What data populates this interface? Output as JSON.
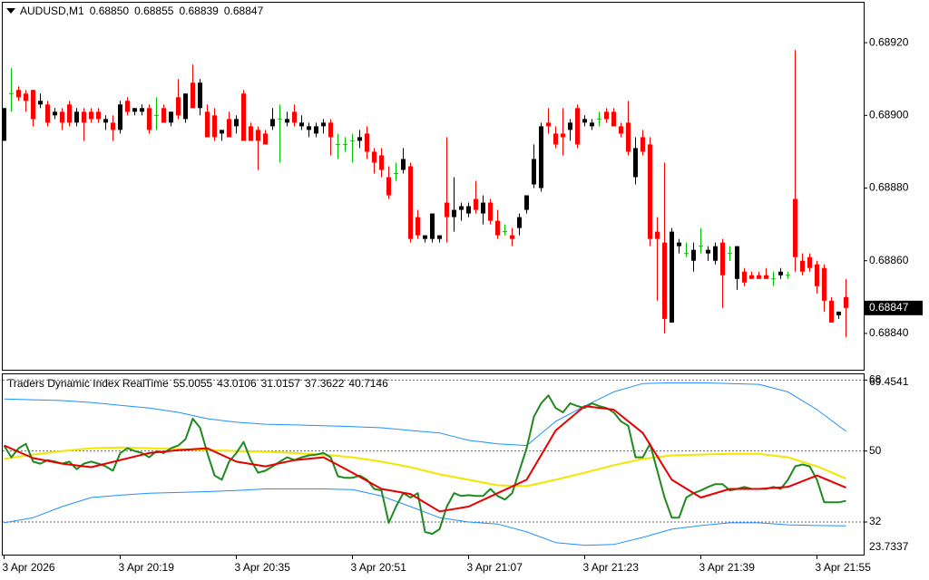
{
  "chart_data": [
    {
      "type": "candlestick",
      "symbol": "AUDUSD,M1",
      "header_values": [
        "0.68850",
        "0.68855",
        "0.68839",
        "0.68847"
      ],
      "last_price": {
        "value": 0.68847,
        "label": "0.68847"
      },
      "colors": {
        "up": "#000000",
        "down": "#ff0000",
        "doji": "#00c000"
      },
      "ylim": [
        0.6883,
        0.68931
      ],
      "yticks": [
        {
          "value": 0.6892,
          "label": "0.68920"
        },
        {
          "value": 0.689,
          "label": "0.68900"
        },
        {
          "value": 0.6888,
          "label": "0.68880"
        },
        {
          "value": 0.6886,
          "label": "0.68860"
        },
        {
          "value": 0.6884,
          "label": "0.68840"
        }
      ],
      "ohlc": [
        [
          0.68893,
          0.68902,
          0.68893,
          0.68902
        ],
        [
          0.68906,
          0.68913,
          0.68901,
          0.68906
        ],
        [
          0.68907,
          0.68908,
          0.68904,
          0.68905
        ],
        [
          0.68906,
          0.68907,
          0.68901,
          0.68904
        ],
        [
          0.68907,
          0.68907,
          0.68897,
          0.68899
        ],
        [
          0.68903,
          0.68906,
          0.68902,
          0.68904
        ],
        [
          0.68903,
          0.68904,
          0.68897,
          0.68898
        ],
        [
          0.689,
          0.68902,
          0.68899,
          0.68901
        ],
        [
          0.68901,
          0.68902,
          0.68896,
          0.68898
        ],
        [
          0.68903,
          0.68904,
          0.68897,
          0.68898
        ],
        [
          0.68898,
          0.68902,
          0.68897,
          0.68901
        ],
        [
          0.68901,
          0.68902,
          0.68893,
          0.68898
        ],
        [
          0.68901,
          0.68902,
          0.68898,
          0.68899
        ],
        [
          0.68901,
          0.68902,
          0.68898,
          0.68899
        ],
        [
          0.68898,
          0.689,
          0.68896,
          0.68899
        ],
        [
          0.68898,
          0.689,
          0.68893,
          0.68896
        ],
        [
          0.68896,
          0.68904,
          0.68895,
          0.68903
        ],
        [
          0.68904,
          0.68905,
          0.689,
          0.68901
        ],
        [
          0.68901,
          0.68902,
          0.689,
          0.68902
        ],
        [
          0.68901,
          0.68903,
          0.689,
          0.68902
        ],
        [
          0.68902,
          0.68903,
          0.68895,
          0.68896
        ],
        [
          0.689,
          0.68905,
          0.68896,
          0.689
        ],
        [
          0.68902,
          0.68903,
          0.68898,
          0.68898
        ],
        [
          0.68898,
          0.68901,
          0.68897,
          0.68901
        ],
        [
          0.68905,
          0.6891,
          0.68899,
          0.689
        ],
        [
          0.68899,
          0.68906,
          0.68898,
          0.68906
        ],
        [
          0.68909,
          0.68914,
          0.68902,
          0.68902
        ],
        [
          0.68902,
          0.6891,
          0.689,
          0.68909
        ],
        [
          0.68901,
          0.68903,
          0.68894,
          0.68894
        ],
        [
          0.689,
          0.68902,
          0.68893,
          0.68894
        ],
        [
          0.68895,
          0.68896,
          0.68893,
          0.68896
        ],
        [
          0.68899,
          0.68901,
          0.68894,
          0.68894
        ],
        [
          0.68897,
          0.689,
          0.68895,
          0.68899
        ],
        [
          0.68906,
          0.68907,
          0.68893,
          0.68893
        ],
        [
          0.68897,
          0.68898,
          0.68893,
          0.68893
        ],
        [
          0.68896,
          0.68897,
          0.68885,
          0.68893
        ],
        [
          0.68895,
          0.68896,
          0.68892,
          0.68892
        ],
        [
          0.68897,
          0.68902,
          0.68896,
          0.68899
        ],
        [
          0.68899,
          0.68903,
          0.68887,
          0.68899
        ],
        [
          0.68898,
          0.68901,
          0.68897,
          0.68899
        ],
        [
          0.68901,
          0.68903,
          0.68897,
          0.68898
        ],
        [
          0.68897,
          0.689,
          0.68896,
          0.68898
        ],
        [
          0.68896,
          0.68898,
          0.68894,
          0.68897
        ],
        [
          0.68895,
          0.68898,
          0.68894,
          0.68897
        ],
        [
          0.68897,
          0.68899,
          0.68895,
          0.68898
        ],
        [
          0.68898,
          0.68899,
          0.68889,
          0.68894
        ],
        [
          0.68892,
          0.68895,
          0.68888,
          0.68892
        ],
        [
          0.68892,
          0.68894,
          0.6889,
          0.68892
        ],
        [
          0.68893,
          0.68895,
          0.68887,
          0.68893
        ],
        [
          0.68893,
          0.68896,
          0.68891,
          0.68894
        ],
        [
          0.68895,
          0.68897,
          0.68888,
          0.6889
        ],
        [
          0.6889,
          0.68891,
          0.68884,
          0.68887
        ],
        [
          0.68889,
          0.68891,
          0.68883,
          0.68885
        ],
        [
          0.68883,
          0.68886,
          0.68877,
          0.68878
        ],
        [
          0.68884,
          0.68887,
          0.68882,
          0.68884
        ],
        [
          0.68885,
          0.68891,
          0.68884,
          0.68888
        ],
        [
          0.68886,
          0.68887,
          0.68865,
          0.68866
        ],
        [
          0.68872,
          0.68874,
          0.68866,
          0.68867
        ],
        [
          0.68866,
          0.68867,
          0.68865,
          0.68867
        ],
        [
          0.68866,
          0.68873,
          0.68865,
          0.68873
        ],
        [
          0.68866,
          0.68867,
          0.68865,
          0.68867
        ],
        [
          0.68876,
          0.68894,
          0.68865,
          0.68872
        ],
        [
          0.68872,
          0.68883,
          0.68868,
          0.68874
        ],
        [
          0.68874,
          0.68876,
          0.68871,
          0.68875
        ],
        [
          0.68873,
          0.68876,
          0.68872,
          0.68875
        ],
        [
          0.68877,
          0.68882,
          0.68873,
          0.68874
        ],
        [
          0.68873,
          0.68878,
          0.6887,
          0.68876
        ],
        [
          0.68876,
          0.68877,
          0.6887,
          0.68871
        ],
        [
          0.68871,
          0.68874,
          0.68866,
          0.68867
        ],
        [
          0.68868,
          0.6887,
          0.68867,
          0.68868
        ],
        [
          0.68867,
          0.68869,
          0.68864,
          0.68866
        ],
        [
          0.68869,
          0.68873,
          0.68867,
          0.68872
        ],
        [
          0.68874,
          0.68878,
          0.68873,
          0.68878
        ],
        [
          0.68881,
          0.68892,
          0.6888,
          0.68888
        ],
        [
          0.6888,
          0.68898,
          0.68879,
          0.68897
        ],
        [
          0.68898,
          0.68902,
          0.68895,
          0.68897
        ],
        [
          0.68895,
          0.68897,
          0.68891,
          0.68892
        ],
        [
          0.68895,
          0.68902,
          0.68889,
          0.68894
        ],
        [
          0.68896,
          0.68899,
          0.68893,
          0.68898
        ],
        [
          0.68902,
          0.68903,
          0.68891,
          0.68892
        ],
        [
          0.68898,
          0.689,
          0.68897,
          0.68899
        ],
        [
          0.68897,
          0.68899,
          0.68896,
          0.68898
        ],
        [
          0.68899,
          0.68901,
          0.68897,
          0.68899
        ],
        [
          0.68901,
          0.68902,
          0.68898,
          0.68899
        ],
        [
          0.68901,
          0.68902,
          0.68897,
          0.68897
        ],
        [
          0.68897,
          0.68898,
          0.68894,
          0.68895
        ],
        [
          0.68898,
          0.68904,
          0.68889,
          0.6889
        ],
        [
          0.68883,
          0.68894,
          0.68881,
          0.68891
        ],
        [
          0.68894,
          0.68896,
          0.68889,
          0.6889
        ],
        [
          0.68892,
          0.68894,
          0.68864,
          0.68866
        ],
        [
          0.68868,
          0.68872,
          0.68849,
          0.68866
        ],
        [
          0.68865,
          0.68887,
          0.6884,
          0.68844
        ],
        [
          0.68843,
          0.68869,
          0.68843,
          0.68868
        ],
        [
          0.68864,
          0.68866,
          0.68862,
          0.68865
        ],
        [
          0.68862,
          0.68865,
          0.68861,
          0.68862
        ],
        [
          0.6886,
          0.68865,
          0.68857,
          0.68863
        ],
        [
          0.68864,
          0.68869,
          0.68862,
          0.68864
        ],
        [
          0.68862,
          0.68864,
          0.6886,
          0.68863
        ],
        [
          0.6886,
          0.68865,
          0.68859,
          0.68864
        ],
        [
          0.68865,
          0.68866,
          0.68847,
          0.68856
        ],
        [
          0.68862,
          0.68864,
          0.6886,
          0.68862
        ],
        [
          0.68855,
          0.68864,
          0.68852,
          0.68864
        ],
        [
          0.68857,
          0.68858,
          0.68853,
          0.68854
        ],
        [
          0.68856,
          0.68857,
          0.68855,
          0.68855
        ],
        [
          0.68856,
          0.68857,
          0.68855,
          0.68855
        ],
        [
          0.68856,
          0.68858,
          0.68855,
          0.68855
        ],
        [
          0.68855,
          0.68857,
          0.68853,
          0.68855
        ],
        [
          0.68856,
          0.68858,
          0.68855,
          0.68857
        ],
        [
          0.68856,
          0.68857,
          0.68855,
          0.68856
        ],
        [
          0.68877,
          0.68918,
          0.68857,
          0.68861
        ],
        [
          0.6886,
          0.68862,
          0.68856,
          0.68857
        ],
        [
          0.68861,
          0.68862,
          0.68857,
          0.68858
        ],
        [
          0.68859,
          0.6886,
          0.68851,
          0.68853
        ],
        [
          0.68858,
          0.68859,
          0.68846,
          0.68849
        ],
        [
          0.68849,
          0.6885,
          0.68843,
          0.68843
        ],
        [
          0.68845,
          0.68846,
          0.68844,
          0.68846
        ],
        [
          0.6885,
          0.68855,
          0.68839,
          0.68847
        ]
      ]
    },
    {
      "type": "line",
      "title": "Traders Dynamic Index RealTime",
      "ylim": [
        23.7337,
        69.4541
      ],
      "yticks": [
        68,
        50,
        32
      ],
      "levels_dashed": true,
      "xticks": [
        {
          "value": 0,
          "label": "3 Apr 2026"
        },
        {
          "value": 16,
          "label": "3 Apr 20:19"
        },
        {
          "value": 32,
          "label": "3 Apr 20:35"
        },
        {
          "value": 48,
          "label": "3 Apr 20:51"
        },
        {
          "value": 64,
          "label": "3 Apr 21:07"
        },
        {
          "value": 80,
          "label": "3 Apr 21:23"
        },
        {
          "value": 96,
          "label": "3 Apr 21:39"
        },
        {
          "value": 112,
          "label": "3 Apr 21:55"
        }
      ],
      "series": [
        {
          "name": "Upper Band",
          "color": "#1e90ff",
          "width": 1,
          "x": [
            0,
            4,
            8,
            12,
            16,
            20,
            24,
            28,
            32,
            36,
            40,
            44,
            48,
            52,
            56,
            60,
            64,
            68,
            72,
            76,
            80,
            84,
            88,
            92,
            96,
            100,
            104,
            108,
            112,
            116
          ],
          "values": [
            63.2,
            63.0,
            62.8,
            62.3,
            61.6,
            60.9,
            59.8,
            58.2,
            57.3,
            56.8,
            56.6,
            56.4,
            56.2,
            55.9,
            55.2,
            54.6,
            52.7,
            51.8,
            51.4,
            57.5,
            61.4,
            65.0,
            67.1,
            67.3,
            67.3,
            67.1,
            66.9,
            65.0,
            60.5,
            55.0055
          ]
        },
        {
          "name": "Market Base",
          "color": "#f2e600",
          "width": 2,
          "x": [
            0,
            4,
            8,
            12,
            16,
            20,
            24,
            28,
            32,
            36,
            40,
            44,
            48,
            52,
            56,
            60,
            64,
            68,
            72,
            76,
            80,
            84,
            88,
            92,
            96,
            100,
            104,
            108,
            112,
            116
          ],
          "values": [
            48.0,
            49.1,
            50.0,
            50.7,
            50.9,
            50.7,
            50.5,
            50.2,
            50.0,
            49.8,
            49.5,
            49.1,
            48.4,
            47.3,
            45.9,
            44.1,
            42.7,
            41.3,
            41.1,
            42.7,
            44.5,
            46.4,
            48.0,
            48.9,
            49.1,
            49.3,
            49.3,
            48.4,
            46.1,
            43.0106
          ]
        },
        {
          "name": "Lower Band",
          "color": "#1e90ff",
          "width": 1,
          "x": [
            0,
            4,
            8,
            12,
            16,
            20,
            24,
            28,
            32,
            36,
            40,
            44,
            48,
            52,
            56,
            60,
            64,
            68,
            72,
            76,
            80,
            84,
            88,
            92,
            96,
            100,
            104,
            108,
            112,
            116
          ],
          "values": [
            31.8,
            33.1,
            35.9,
            38.2,
            38.8,
            39.3,
            39.5,
            39.7,
            40.0,
            40.4,
            40.4,
            40.4,
            40.2,
            38.6,
            35.9,
            33.1,
            32.0,
            31.5,
            29.5,
            26.8,
            26.1,
            26.3,
            28.1,
            30.2,
            31.1,
            31.8,
            31.8,
            31.3,
            31.1,
            31.0157
          ]
        },
        {
          "name": "RSI Price Line",
          "color": "#1f8a1f",
          "width": 2,
          "values": [
            51.4,
            48.4,
            50.7,
            51.8,
            47.3,
            46.8,
            47.7,
            47.3,
            46.8,
            47.3,
            45.4,
            46.8,
            47.3,
            46.8,
            46.1,
            45.0,
            49.5,
            50.7,
            50.0,
            49.5,
            48.4,
            50.0,
            49.5,
            50.7,
            51.4,
            53.0,
            58.2,
            55.9,
            49.5,
            43.8,
            42.7,
            47.3,
            49.5,
            52.3,
            47.7,
            44.5,
            45.0,
            46.1,
            47.3,
            48.4,
            47.7,
            48.4,
            48.9,
            49.1,
            49.5,
            48.4,
            43.6,
            43.2,
            43.2,
            43.8,
            42.7,
            40.4,
            40.0,
            31.8,
            35.9,
            39.3,
            38.2,
            39.3,
            29.5,
            29.0,
            30.2,
            35.9,
            39.3,
            38.6,
            38.8,
            38.6,
            38.6,
            40.4,
            38.6,
            37.7,
            39.3,
            45.0,
            50.7,
            58.7,
            62.1,
            64.1,
            60.9,
            59.8,
            62.1,
            61.4,
            60.9,
            62.1,
            61.4,
            60.9,
            59.8,
            57.5,
            56.4,
            48.4,
            48.4,
            51.8,
            45.0,
            38.2,
            33.1,
            33.1,
            38.2,
            39.3,
            40.0,
            40.9,
            41.6,
            41.6,
            40.0,
            40.4,
            40.9,
            40.4,
            40.4,
            40.4,
            40.9,
            40.4,
            42.7,
            46.1,
            46.6,
            46.1,
            42.7,
            37.0,
            37.0,
            37.0,
            37.3622
          ]
        },
        {
          "name": "Trade Signal Line",
          "color": "#e60000",
          "width": 2,
          "x": [
            0,
            4,
            8,
            12,
            16,
            20,
            24,
            28,
            32,
            36,
            40,
            44,
            48,
            52,
            56,
            60,
            64,
            68,
            72,
            76,
            80,
            84,
            88,
            92,
            96,
            100,
            104,
            108,
            112,
            116
          ],
          "values": [
            51.4,
            48.2,
            46.8,
            45.9,
            47.7,
            49.5,
            50.2,
            50.7,
            47.3,
            46.1,
            47.7,
            48.4,
            44.5,
            40.4,
            39.1,
            34.7,
            35.9,
            39.3,
            42.7,
            55.2,
            61.4,
            60.5,
            54.6,
            42.7,
            38.2,
            40.4,
            40.4,
            40.9,
            43.8,
            40.7146
          ]
        }
      ]
    }
  ]
}
